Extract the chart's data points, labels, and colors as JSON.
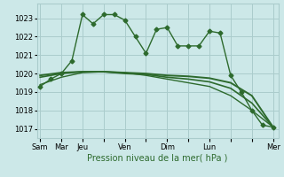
{
  "background_color": "#cce8e8",
  "grid_color": "#aacccc",
  "line_color": "#2d6a2d",
  "title": "Pression niveau de la mer( hPa )",
  "ylim": [
    1016.5,
    1023.8
  ],
  "yticks": [
    1017,
    1018,
    1019,
    1020,
    1021,
    1022,
    1023
  ],
  "xtick_labels": [
    "Sam",
    "Mar",
    "Jeu",
    "",
    "Ven",
    "",
    "Dim",
    "",
    "Lun",
    "",
    "",
    "Mer"
  ],
  "xtick_positions": [
    0,
    2,
    4,
    6,
    8,
    10,
    12,
    14,
    16,
    18,
    20,
    22
  ],
  "xlim": [
    -0.3,
    22.5
  ],
  "series": [
    {
      "x": [
        0,
        1,
        2,
        3,
        4,
        5,
        6,
        7,
        8,
        9,
        10,
        11,
        12,
        13,
        14,
        15,
        16,
        17,
        18,
        19,
        20,
        21,
        22
      ],
      "y": [
        1019.3,
        1019.7,
        1020.0,
        1020.7,
        1023.2,
        1022.7,
        1023.2,
        1023.2,
        1022.9,
        1022.0,
        1021.1,
        1022.4,
        1022.5,
        1021.5,
        1021.5,
        1021.5,
        1022.3,
        1022.2,
        1019.9,
        1019.0,
        1018.0,
        1017.2,
        1017.1
      ],
      "marker": "D",
      "markersize": 2.5,
      "linewidth": 1.0
    },
    {
      "x": [
        0,
        2,
        4,
        6,
        8,
        10,
        12,
        14,
        16,
        18,
        20,
        22
      ],
      "y": [
        1019.9,
        1020.05,
        1020.1,
        1020.1,
        1020.05,
        1020.0,
        1019.9,
        1019.85,
        1019.75,
        1019.5,
        1018.8,
        1017.1
      ],
      "marker": null,
      "linewidth": 1.4
    },
    {
      "x": [
        0,
        2,
        4,
        6,
        8,
        10,
        12,
        14,
        16,
        18,
        20,
        22
      ],
      "y": [
        1019.8,
        1020.0,
        1020.1,
        1020.1,
        1020.0,
        1019.95,
        1019.8,
        1019.7,
        1019.55,
        1019.2,
        1018.4,
        1017.1
      ],
      "marker": null,
      "linewidth": 1.2
    },
    {
      "x": [
        0,
        2,
        4,
        6,
        8,
        10,
        12,
        14,
        16,
        18,
        20,
        22
      ],
      "y": [
        1019.4,
        1019.8,
        1020.05,
        1020.1,
        1020.05,
        1019.9,
        1019.7,
        1019.5,
        1019.3,
        1018.8,
        1018.0,
        1017.1
      ],
      "marker": null,
      "linewidth": 1.0
    }
  ]
}
